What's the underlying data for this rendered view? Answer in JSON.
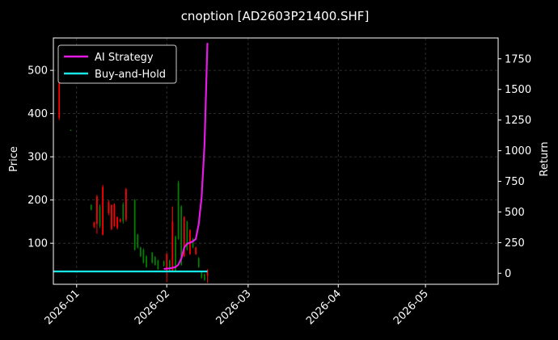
{
  "chart_data": {
    "type": "line",
    "title": "cnoption [AD2603P21400.SHF]",
    "ylabel": "Price",
    "y2label": "Return",
    "ylim": [
      5,
      575
    ],
    "y2lim": [
      -90,
      1920
    ],
    "xlim": [
      "2025-12-24",
      "2026-05-26"
    ],
    "yticks": [
      100,
      200,
      300,
      400,
      500
    ],
    "y2ticks": [
      0,
      250,
      500,
      750,
      1000,
      1250,
      1500,
      1750
    ],
    "xticks": [
      "2026-01",
      "2026-02",
      "2026-03",
      "2026-04",
      "2026-05"
    ],
    "grid": true,
    "legend_position": "top-left",
    "candles": [
      {
        "date": "2025-12-26",
        "open": 470,
        "close": 390,
        "high": 520,
        "low": 385
      },
      {
        "date": "2025-12-30",
        "open": 361,
        "close": 362,
        "high": 363,
        "low": 360
      },
      {
        "date": "2026-01-06",
        "open": 178,
        "close": 188,
        "high": 190,
        "low": 176
      },
      {
        "date": "2026-01-07",
        "open": 148,
        "close": 138,
        "high": 150,
        "low": 135
      },
      {
        "date": "2026-01-08",
        "open": 208,
        "close": 145,
        "high": 212,
        "low": 122
      },
      {
        "date": "2026-01-09",
        "open": 140,
        "close": 185,
        "high": 190,
        "low": 135
      },
      {
        "date": "2026-01-10",
        "open": 230,
        "close": 120,
        "high": 235,
        "low": 118
      },
      {
        "date": "2026-01-12",
        "open": 195,
        "close": 170,
        "high": 200,
        "low": 165
      },
      {
        "date": "2026-01-13",
        "open": 188,
        "close": 133,
        "high": 190,
        "low": 130
      },
      {
        "date": "2026-01-14",
        "open": 190,
        "close": 140,
        "high": 192,
        "low": 138
      },
      {
        "date": "2026-01-15",
        "open": 160,
        "close": 135,
        "high": 162,
        "low": 132
      },
      {
        "date": "2026-01-16",
        "open": 155,
        "close": 150,
        "high": 158,
        "low": 148
      },
      {
        "date": "2026-01-17",
        "open": 150,
        "close": 190,
        "high": 195,
        "low": 145
      },
      {
        "date": "2026-01-18",
        "open": 225,
        "close": 155,
        "high": 228,
        "low": 150
      },
      {
        "date": "2026-01-21",
        "open": 85,
        "close": 200,
        "high": 202,
        "low": 83
      },
      {
        "date": "2026-01-22",
        "open": 90,
        "close": 120,
        "high": 122,
        "low": 88
      },
      {
        "date": "2026-01-23",
        "open": 70,
        "close": 90,
        "high": 92,
        "low": 68
      },
      {
        "date": "2026-01-24",
        "open": 55,
        "close": 85,
        "high": 88,
        "low": 53
      },
      {
        "date": "2026-01-25",
        "open": 45,
        "close": 70,
        "high": 72,
        "low": 43
      },
      {
        "date": "2026-01-27",
        "open": 55,
        "close": 78,
        "high": 80,
        "low": 53
      },
      {
        "date": "2026-01-28",
        "open": 50,
        "close": 68,
        "high": 70,
        "low": 48
      },
      {
        "date": "2026-01-29",
        "open": 40,
        "close": 60,
        "high": 62,
        "low": 38
      },
      {
        "date": "2026-01-31",
        "open": 48,
        "close": 58,
        "high": 60,
        "low": 46
      },
      {
        "date": "2026-02-01",
        "open": 75,
        "close": 35,
        "high": 77,
        "low": 10
      },
      {
        "date": "2026-02-02",
        "open": 35,
        "close": 60,
        "high": 62,
        "low": 33
      },
      {
        "date": "2026-02-03",
        "open": 150,
        "close": 35,
        "high": 185,
        "low": 33
      },
      {
        "date": "2026-02-04",
        "open": 35,
        "close": 115,
        "high": 118,
        "low": 33
      },
      {
        "date": "2026-02-05",
        "open": 110,
        "close": 240,
        "high": 245,
        "low": 108
      },
      {
        "date": "2026-02-06",
        "open": 50,
        "close": 185,
        "high": 188,
        "low": 48
      },
      {
        "date": "2026-02-07",
        "open": 160,
        "close": 70,
        "high": 163,
        "low": 68
      },
      {
        "date": "2026-02-08",
        "open": 85,
        "close": 150,
        "high": 152,
        "low": 83
      },
      {
        "date": "2026-02-09",
        "open": 130,
        "close": 75,
        "high": 132,
        "low": 73
      },
      {
        "date": "2026-02-10",
        "open": 90,
        "close": 110,
        "high": 112,
        "low": 88
      },
      {
        "date": "2026-02-11",
        "open": 90,
        "close": 75,
        "high": 92,
        "low": 73
      },
      {
        "date": "2026-02-12",
        "open": 45,
        "close": 65,
        "high": 68,
        "low": 43
      },
      {
        "date": "2026-02-13",
        "open": 20,
        "close": 32,
        "high": 35,
        "low": 18
      },
      {
        "date": "2026-02-14",
        "open": 15,
        "close": 28,
        "high": 30,
        "low": 13
      },
      {
        "date": "2026-02-15",
        "open": 38,
        "close": 25,
        "high": 40,
        "low": 8
      }
    ],
    "series": [
      {
        "name": "AI Strategy",
        "color": "#e619e6",
        "axis": "right",
        "x": [
          "2026-01-31",
          "2026-02-02",
          "2026-02-04",
          "2026-02-05",
          "2026-02-06",
          "2026-02-07",
          "2026-02-08",
          "2026-02-09",
          "2026-02-10",
          "2026-02-11",
          "2026-02-12",
          "2026-02-13",
          "2026-02-14",
          "2026-02-15"
        ],
        "values": [
          35,
          40,
          50,
          70,
          120,
          210,
          240,
          250,
          260,
          280,
          400,
          620,
          1050,
          1880
        ]
      },
      {
        "name": "Buy-and-Hold",
        "color": "#19e6e6",
        "axis": "right",
        "x": [
          "2025-12-24",
          "2026-02-15"
        ],
        "values": [
          15,
          15
        ]
      }
    ],
    "colors": {
      "up": "#008000",
      "down": "#ff0000",
      "grid": "#3a3a3a",
      "background": "#000000",
      "legend_background": "#000000",
      "legend_border": "#cccccc"
    }
  }
}
